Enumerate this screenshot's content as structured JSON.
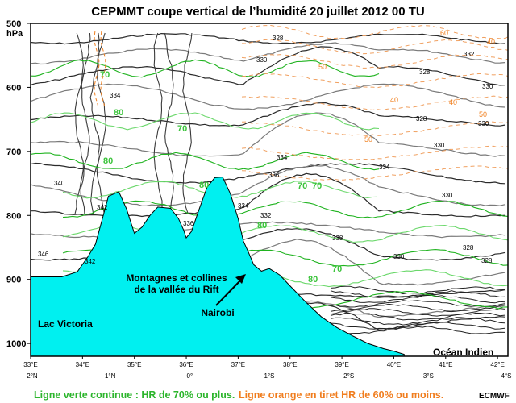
{
  "title": "CEPMMT coupe vertical de l’humidité 20 juillet 2012 00 TU",
  "footer": {
    "green": "Ligne verte continue : HR de 70% ou plus.",
    "orange": "Ligne orange en tiret HR de 60% ou moins.",
    "credit": "ECMWF"
  },
  "chart_data": {
    "type": "cross-section",
    "y_axis": {
      "unit": "hPa",
      "range": [
        500,
        1020
      ],
      "ticks": [
        "500",
        "600",
        "700",
        "800",
        "900",
        "1000"
      ]
    },
    "x_axis_top": {
      "ticks": [
        "33°E",
        "34°E",
        "35°E",
        "36°E",
        "37°E",
        "38°E",
        "39°E",
        "40°E",
        "41°E",
        "42°E"
      ]
    },
    "x_axis_bottom": {
      "ticks": [
        "2°N",
        "1°N",
        "0°",
        "1°S",
        "2°S",
        "3°S",
        "4°S"
      ]
    },
    "terrain": {
      "color": "#00f0f0",
      "profile": [
        [
          33.0,
          896
        ],
        [
          33.6,
          896
        ],
        [
          33.9,
          888
        ],
        [
          34.1,
          865
        ],
        [
          34.25,
          845
        ],
        [
          34.4,
          800
        ],
        [
          34.5,
          770
        ],
        [
          34.7,
          763
        ],
        [
          34.85,
          790
        ],
        [
          35.0,
          828
        ],
        [
          35.15,
          818
        ],
        [
          35.3,
          800
        ],
        [
          35.45,
          787
        ],
        [
          35.7,
          789
        ],
        [
          35.85,
          805
        ],
        [
          35.95,
          823
        ],
        [
          36.0,
          835
        ],
        [
          36.1,
          825
        ],
        [
          36.25,
          790
        ],
        [
          36.4,
          756
        ],
        [
          36.55,
          741
        ],
        [
          36.7,
          740
        ],
        [
          36.85,
          766
        ],
        [
          37.0,
          805
        ],
        [
          37.1,
          840
        ],
        [
          37.2,
          858
        ],
        [
          37.3,
          877
        ],
        [
          37.45,
          887
        ],
        [
          37.6,
          883
        ],
        [
          37.8,
          893
        ],
        [
          38.0,
          910
        ],
        [
          38.3,
          935
        ],
        [
          38.6,
          958
        ],
        [
          38.9,
          975
        ],
        [
          39.2,
          988
        ],
        [
          39.5,
          1000
        ],
        [
          39.8,
          1008
        ],
        [
          40.0,
          1012
        ],
        [
          40.2,
          1017
        ]
      ]
    },
    "annotations": [
      {
        "text": "Montagnes et collines de la vallée du Rift",
        "type": "callout"
      },
      {
        "text": "Nairobi",
        "type": "arrow-label"
      },
      {
        "text": "Lac Victoria",
        "type": "region-label"
      },
      {
        "text": "Océan Indien",
        "type": "region-label"
      }
    ],
    "contour_labels": {
      "theta": [
        "328",
        "330",
        "332",
        "334",
        "336",
        "338",
        "340",
        "342",
        "346"
      ],
      "rh_green": [
        "70",
        "80"
      ],
      "rh_orange": [
        "40",
        "50",
        "60"
      ]
    },
    "colors": {
      "theta": "#5a5a5a",
      "rh_high": "#2cb52c",
      "rh_low": "#f0a060",
      "terrain": "#00f0f0"
    }
  }
}
